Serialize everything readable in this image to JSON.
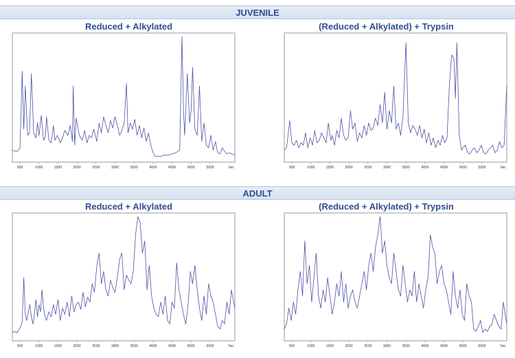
{
  "sections": [
    {
      "title": "JUVENILE",
      "panel_titles": [
        "Reduced + Alkylated",
        "(Reduced + Alkylated) + Trypsin"
      ]
    },
    {
      "title": "ADULT",
      "panel_titles": [
        "Reduced + Alkylated",
        "(Reduced + Alkylated) + Trypsin"
      ]
    }
  ],
  "colors": {
    "trace": "#4d4fa6",
    "header_text": "#2e4f8f",
    "band": "#dde5f2",
    "frame": "#999999"
  },
  "chart_data": [
    {
      "type": "line",
      "title": "Reduced + Alkylated",
      "group": "JUVENILE",
      "xlabel": "",
      "ylabel": "",
      "xunit_label": "Sec",
      "xticks": [
        500,
        1000,
        1500,
        2000,
        2500,
        3000,
        3500,
        4000,
        4500,
        5000,
        5500
      ],
      "xlim": [
        300,
        6150
      ],
      "ylim": [
        0,
        100
      ],
      "x": [
        300,
        400,
        460,
        500,
        560,
        600,
        640,
        700,
        750,
        800,
        860,
        920,
        960,
        1000,
        1060,
        1120,
        1170,
        1200,
        1260,
        1320,
        1380,
        1420,
        1480,
        1560,
        1620,
        1680,
        1760,
        1820,
        1880,
        1900,
        1940,
        1980,
        2060,
        2140,
        2200,
        2260,
        2320,
        2380,
        2440,
        2520,
        2580,
        2640,
        2700,
        2760,
        2820,
        2880,
        2940,
        3000,
        3060,
        3120,
        3180,
        3240,
        3300,
        3340,
        3400,
        3460,
        3520,
        3580,
        3640,
        3700,
        3760,
        3820,
        3880,
        3940,
        4000,
        4060,
        4120,
        4200,
        4300,
        4400,
        4500,
        4600,
        4700,
        4760,
        4800,
        4830,
        4900,
        4960,
        5000,
        5040,
        5100,
        5160,
        5220,
        5280,
        5340,
        5400,
        5460,
        5520,
        5580,
        5640,
        5700,
        5760,
        5820,
        5880,
        5940,
        6000,
        6060,
        6150
      ],
      "series": [
        {
          "values": [
            8,
            7,
            8,
            10,
            72,
            25,
            60,
            20,
            22,
            70,
            22,
            18,
            30,
            20,
            36,
            16,
            19,
            35,
            16,
            14,
            28,
            16,
            20,
            14,
            18,
            24,
            20,
            28,
            15,
            60,
            12,
            34,
            20,
            16,
            24,
            14,
            20,
            18,
            25,
            15,
            30,
            22,
            35,
            28,
            22,
            32,
            26,
            35,
            28,
            20,
            24,
            30,
            62,
            22,
            30,
            25,
            33,
            20,
            28,
            18,
            26,
            15,
            22,
            12,
            6,
            3,
            3,
            3,
            4,
            4,
            5,
            6,
            8,
            100,
            40,
            20,
            70,
            30,
            40,
            75,
            25,
            20,
            60,
            15,
            30,
            12,
            10,
            20,
            8,
            15,
            6,
            5,
            10,
            7,
            5,
            6,
            5,
            4
          ]
        }
      ]
    },
    {
      "type": "line",
      "title": "(Reduced + Alkylated) + Trypsin",
      "group": "JUVENILE",
      "xlabel": "",
      "ylabel": "",
      "xunit_label": "Sec",
      "xticks": [
        500,
        1000,
        1500,
        2000,
        2500,
        3000,
        3500,
        4000,
        4500,
        5000,
        5500
      ],
      "xlim": [
        300,
        6150
      ],
      "ylim": [
        0,
        100
      ],
      "x": [
        300,
        360,
        400,
        440,
        500,
        560,
        620,
        680,
        740,
        800,
        860,
        920,
        980,
        1040,
        1100,
        1160,
        1220,
        1280,
        1340,
        1400,
        1460,
        1520,
        1560,
        1620,
        1680,
        1740,
        1800,
        1860,
        1920,
        1980,
        2040,
        2100,
        2160,
        2220,
        2280,
        2340,
        2400,
        2460,
        2520,
        2580,
        2640,
        2700,
        2760,
        2820,
        2880,
        2940,
        3000,
        3060,
        3120,
        3180,
        3240,
        3300,
        3360,
        3420,
        3500,
        3560,
        3620,
        3680,
        3740,
        3800,
        3860,
        3920,
        3980,
        4040,
        4100,
        4160,
        4220,
        4280,
        4340,
        4400,
        4460,
        4520,
        4580,
        4640,
        4700,
        4760,
        4800,
        4840,
        4900,
        4960,
        5000,
        5060,
        5120,
        5180,
        5240,
        5300,
        5360,
        5420,
        5480,
        5540,
        5600,
        5660,
        5720,
        5780,
        5840,
        5900,
        5960,
        6020,
        6080,
        6150
      ],
      "series": [
        {
          "values": [
            8,
            10,
            20,
            32,
            14,
            12,
            16,
            10,
            14,
            12,
            22,
            10,
            18,
            12,
            24,
            14,
            16,
            22,
            18,
            14,
            30,
            16,
            20,
            12,
            24,
            18,
            34,
            20,
            16,
            18,
            40,
            25,
            30,
            15,
            22,
            18,
            28,
            20,
            30,
            24,
            26,
            34,
            28,
            45,
            30,
            55,
            25,
            40,
            30,
            60,
            25,
            30,
            20,
            35,
            95,
            30,
            22,
            28,
            25,
            20,
            28,
            18,
            25,
            14,
            22,
            12,
            18,
            10,
            16,
            12,
            20,
            14,
            18,
            60,
            85,
            82,
            50,
            95,
            20,
            8,
            10,
            12,
            6,
            5,
            8,
            10,
            6,
            8,
            12,
            6,
            5,
            8,
            10,
            12,
            6,
            8,
            15,
            10,
            12,
            60
          ]
        }
      ]
    },
    {
      "type": "line",
      "title": "Reduced + Alkylated",
      "group": "ADULT",
      "xlabel": "",
      "ylabel": "",
      "xunit_label": "Sec",
      "xticks": [
        500,
        1000,
        1500,
        2000,
        2500,
        3000,
        3500,
        4000,
        4500,
        5000,
        5500
      ],
      "xlim": [
        300,
        6150
      ],
      "ylim": [
        0,
        100
      ],
      "x": [
        300,
        360,
        420,
        480,
        520,
        560,
        600,
        640,
        680,
        720,
        760,
        800,
        840,
        880,
        920,
        960,
        1000,
        1040,
        1080,
        1120,
        1160,
        1200,
        1260,
        1320,
        1380,
        1440,
        1500,
        1560,
        1620,
        1680,
        1740,
        1800,
        1860,
        1920,
        1980,
        2040,
        2100,
        2160,
        2220,
        2280,
        2340,
        2400,
        2460,
        2520,
        2580,
        2640,
        2700,
        2760,
        2820,
        2880,
        2940,
        3000,
        3060,
        3120,
        3180,
        3240,
        3300,
        3360,
        3420,
        3480,
        3540,
        3600,
        3660,
        3720,
        3780,
        3840,
        3900,
        3960,
        4020,
        4080,
        4140,
        4200,
        4260,
        4320,
        4380,
        4440,
        4500,
        4560,
        4620,
        4680,
        4740,
        4800,
        4860,
        4920,
        4980,
        5040,
        5100,
        5160,
        5220,
        5280,
        5340,
        5400,
        5460,
        5520,
        5580,
        5640,
        5700,
        5760,
        5820,
        5880,
        5940,
        6000,
        6060,
        6150
      ],
      "series": [
        {
          "values": [
            5,
            6,
            5,
            8,
            10,
            14,
            50,
            20,
            15,
            22,
            28,
            18,
            12,
            20,
            32,
            18,
            28,
            22,
            40,
            25,
            18,
            15,
            22,
            18,
            28,
            20,
            32,
            15,
            25,
            20,
            30,
            18,
            35,
            22,
            28,
            30,
            24,
            38,
            26,
            34,
            30,
            45,
            38,
            60,
            70,
            45,
            55,
            40,
            35,
            48,
            42,
            38,
            50,
            65,
            70,
            40,
            52,
            48,
            45,
            55,
            85,
            100,
            95,
            70,
            80,
            40,
            60,
            35,
            25,
            20,
            18,
            30,
            20,
            35,
            15,
            12,
            30,
            25,
            62,
            40,
            30,
            20,
            12,
            28,
            55,
            45,
            60,
            40,
            25,
            15,
            35,
            20,
            45,
            35,
            30,
            20,
            10,
            8,
            15,
            12,
            30,
            20,
            40,
            25
          ]
        }
      ]
    },
    {
      "type": "line",
      "title": "(Reduced + Alkylated) + Trypsin",
      "group": "ADULT",
      "xlabel": "",
      "ylabel": "",
      "xunit_label": "Sec",
      "xticks": [
        500,
        1000,
        1500,
        2000,
        2500,
        3000,
        3500,
        4000,
        4500,
        5000,
        5500
      ],
      "xlim": [
        300,
        6150
      ],
      "ylim": [
        0,
        100
      ],
      "x": [
        300,
        360,
        420,
        480,
        540,
        600,
        660,
        720,
        780,
        840,
        900,
        960,
        1020,
        1080,
        1140,
        1200,
        1260,
        1320,
        1380,
        1440,
        1500,
        1560,
        1620,
        1680,
        1740,
        1800,
        1860,
        1920,
        1980,
        2040,
        2100,
        2160,
        2220,
        2280,
        2340,
        2400,
        2460,
        2520,
        2580,
        2640,
        2700,
        2760,
        2820,
        2880,
        2940,
        3000,
        3060,
        3120,
        3180,
        3240,
        3300,
        3360,
        3420,
        3480,
        3540,
        3600,
        3660,
        3720,
        3780,
        3840,
        3900,
        3960,
        4020,
        4080,
        4140,
        4200,
        4260,
        4320,
        4380,
        4440,
        4500,
        4560,
        4620,
        4680,
        4740,
        4800,
        4860,
        4920,
        4980,
        5040,
        5100,
        5160,
        5220,
        5280,
        5340,
        5400,
        5460,
        5520,
        5580,
        5640,
        5700,
        5760,
        5820,
        5880,
        5940,
        6000,
        6060,
        6150
      ],
      "series": [
        {
          "values": [
            8,
            12,
            25,
            15,
            30,
            20,
            40,
            55,
            35,
            80,
            45,
            60,
            30,
            50,
            70,
            35,
            25,
            40,
            30,
            50,
            35,
            20,
            30,
            45,
            35,
            55,
            30,
            45,
            25,
            35,
            40,
            30,
            25,
            35,
            45,
            55,
            40,
            60,
            70,
            55,
            75,
            85,
            100,
            70,
            80,
            60,
            50,
            45,
            70,
            55,
            40,
            35,
            60,
            45,
            30,
            40,
            35,
            55,
            30,
            45,
            35,
            25,
            40,
            50,
            85,
            75,
            70,
            45,
            55,
            60,
            45,
            40,
            30,
            20,
            55,
            35,
            25,
            40,
            20,
            15,
            45,
            35,
            30,
            8,
            6,
            10,
            15,
            5,
            8,
            6,
            10,
            12,
            20,
            15,
            10,
            8,
            30,
            12
          ]
        }
      ]
    }
  ]
}
